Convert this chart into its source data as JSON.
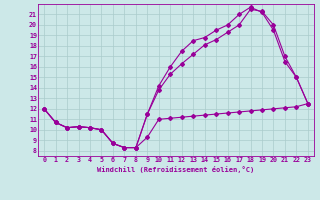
{
  "xlabel": "Windchill (Refroidissement éolien,°C)",
  "bg_color": "#cce8e8",
  "line_color": "#990099",
  "grid_color": "#aacccc",
  "xlim": [
    -0.5,
    23.5
  ],
  "ylim": [
    7.5,
    22.0
  ],
  "xticks": [
    0,
    1,
    2,
    3,
    4,
    5,
    6,
    7,
    8,
    9,
    10,
    11,
    12,
    13,
    14,
    15,
    16,
    17,
    18,
    19,
    20,
    21,
    22,
    23
  ],
  "yticks": [
    8,
    9,
    10,
    11,
    12,
    13,
    14,
    15,
    16,
    17,
    18,
    19,
    20,
    21
  ],
  "line1_x": [
    0,
    1,
    2,
    3,
    4,
    5,
    6,
    7,
    8,
    9,
    10,
    11,
    12,
    13,
    14,
    15,
    16,
    17,
    18,
    19,
    20,
    21,
    22,
    23
  ],
  "line1_y": [
    12.0,
    10.7,
    10.2,
    10.3,
    10.2,
    10.0,
    8.7,
    8.3,
    8.3,
    9.3,
    11.0,
    11.1,
    11.2,
    11.3,
    11.4,
    11.5,
    11.6,
    11.7,
    11.8,
    11.9,
    12.0,
    12.1,
    12.2,
    12.5
  ],
  "line2_x": [
    0,
    1,
    2,
    3,
    4,
    5,
    6,
    7,
    8,
    9,
    10,
    11,
    12,
    13,
    14,
    15,
    16,
    17,
    18,
    19,
    20,
    21,
    22,
    23
  ],
  "line2_y": [
    12.0,
    10.7,
    10.2,
    10.3,
    10.2,
    10.0,
    8.7,
    8.3,
    8.3,
    11.5,
    13.8,
    15.3,
    16.3,
    17.2,
    18.1,
    18.6,
    19.3,
    20.0,
    21.5,
    21.3,
    20.0,
    17.0,
    15.0,
    12.5
  ],
  "line3_x": [
    0,
    1,
    2,
    3,
    4,
    5,
    6,
    7,
    8,
    9,
    10,
    11,
    12,
    13,
    14,
    15,
    16,
    17,
    18,
    19,
    20,
    21,
    22,
    23
  ],
  "line3_y": [
    12.0,
    10.7,
    10.2,
    10.3,
    10.2,
    10.0,
    8.7,
    8.3,
    8.3,
    11.5,
    14.2,
    16.0,
    17.5,
    18.5,
    18.8,
    19.5,
    20.0,
    21.0,
    21.7,
    21.2,
    19.5,
    16.5,
    15.0,
    12.5
  ]
}
